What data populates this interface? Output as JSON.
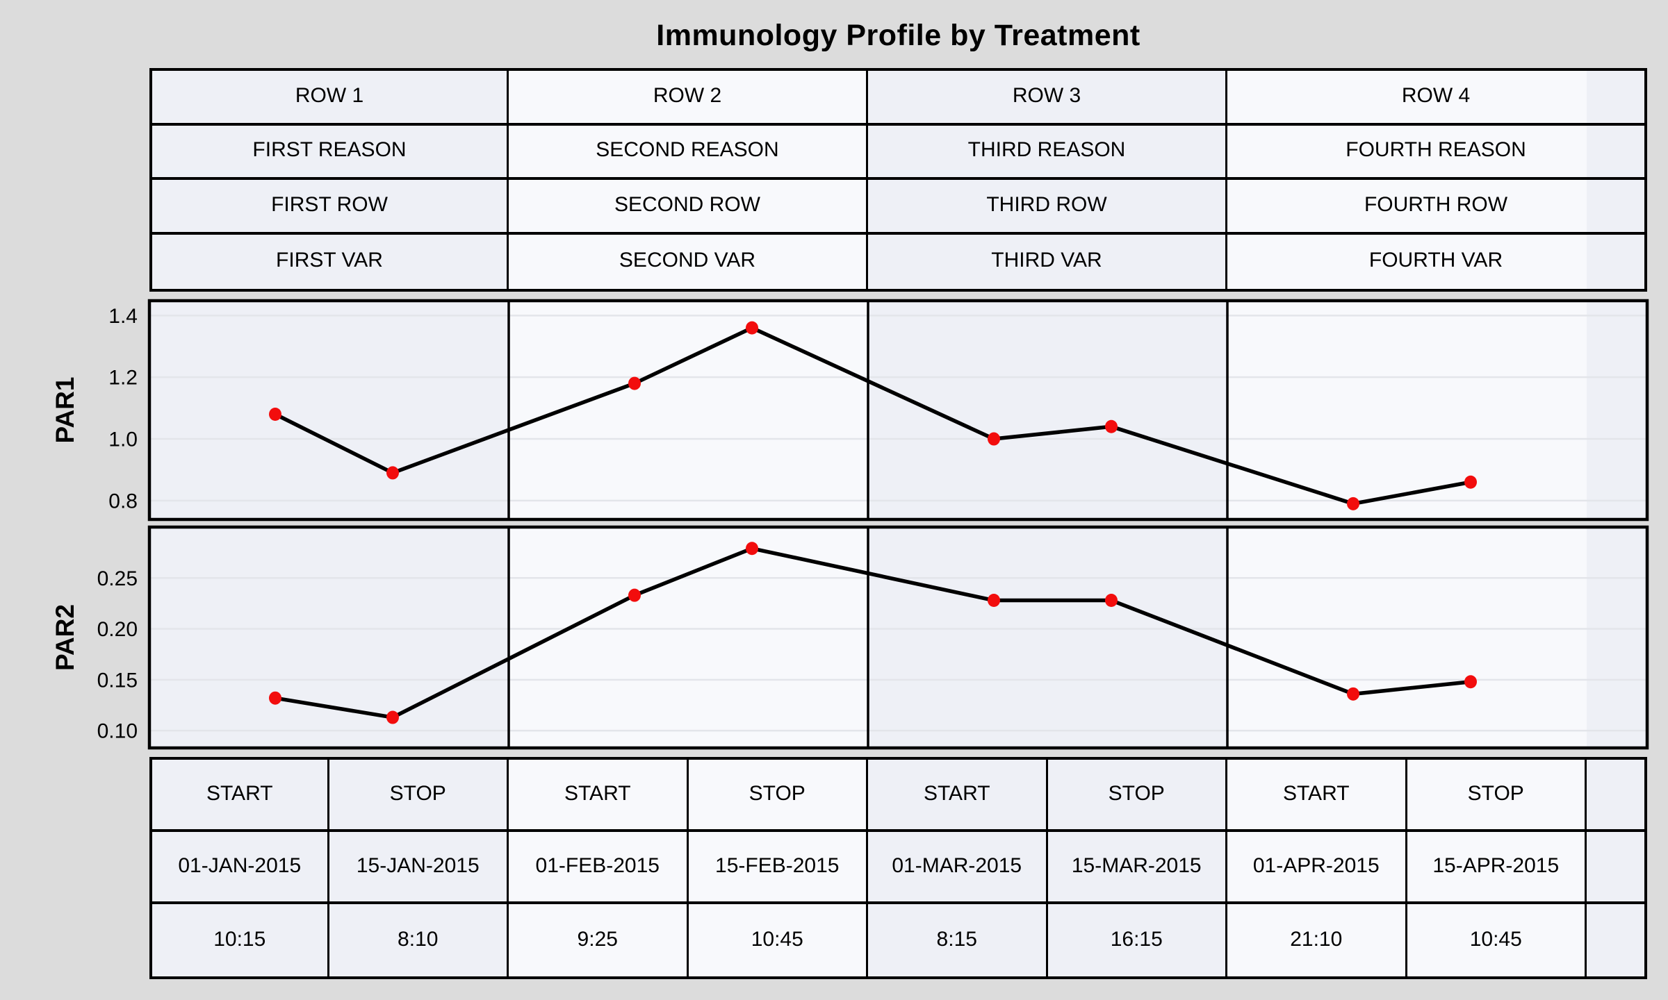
{
  "colors": {
    "background": "#dcdcdc",
    "band_dark": "#eef0f6",
    "band_light": "#f8f9fc",
    "grid": "#e3e5ea",
    "border": "#000000",
    "text": "#000000",
    "line": "#000000",
    "marker": "#f20d0d"
  },
  "header_table": {
    "rows": [
      [
        "ROW 1",
        "ROW 2",
        "ROW 3",
        "ROW 4"
      ],
      [
        "FIRST REASON",
        "SECOND REASON",
        "THIRD REASON",
        "FOURTH REASON"
      ],
      [
        "FIRST ROW",
        "SECOND ROW",
        "THIRD ROW",
        "FOURTH ROW"
      ],
      [
        "FIRST VAR",
        "SECOND VAR",
        "THIRD VAR",
        "FOURTH VAR"
      ]
    ]
  },
  "bottom_table": {
    "rows": [
      [
        "START",
        "STOP",
        "START",
        "STOP",
        "START",
        "STOP",
        "START",
        "STOP",
        ""
      ],
      [
        "01-JAN-2015",
        "15-JAN-2015",
        "01-FEB-2015",
        "15-FEB-2015",
        "01-MAR-2015",
        "15-MAR-2015",
        "01-APR-2015",
        "15-APR-2015",
        ""
      ],
      [
        "10:15",
        "8:10",
        "9:25",
        "10:45",
        "8:15",
        "16:15",
        "21:10",
        "10:45",
        ""
      ]
    ]
  },
  "chart_data": {
    "type": "line",
    "title": "Immunology Profile by Treatment",
    "panel_labels": [
      "ROW 1",
      "ROW 2",
      "ROW 3",
      "ROW 4"
    ],
    "x_categories": [
      "01-JAN-2015 10:15",
      "15-JAN-2015 8:10",
      "01-FEB-2015 9:25",
      "15-FEB-2015 10:45",
      "01-MAR-2015 8:15",
      "15-MAR-2015 16:15",
      "01-APR-2015 21:10",
      "15-APR-2015 10:45"
    ],
    "grid": "horizontal",
    "legend": "none",
    "marker": "filled-circle",
    "series": [
      {
        "name": "PAR1",
        "values": [
          1.08,
          0.89,
          1.18,
          1.36,
          1.0,
          1.04,
          0.79,
          0.86
        ],
        "yticks": [
          "1.4",
          "1.2",
          "1.0",
          "0.8"
        ],
        "ylim": [
          0.739,
          1.448
        ]
      },
      {
        "name": "PAR2",
        "values": [
          0.132,
          0.113,
          0.233,
          0.279,
          0.228,
          0.228,
          0.136,
          0.148
        ],
        "yticks": [
          "0.25",
          "0.20",
          "0.15",
          "0.10"
        ],
        "ylim": [
          0.083,
          0.3
        ]
      }
    ]
  }
}
